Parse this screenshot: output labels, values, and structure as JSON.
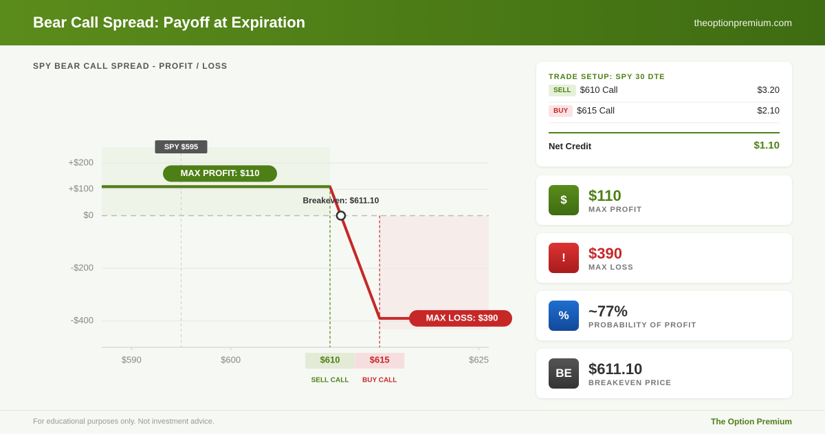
{
  "header": {
    "title": "Bear Call Spread: Payoff at Expiration",
    "site": "theoptionpremium.com"
  },
  "chart_data": {
    "type": "line",
    "title": "SPY BEAR CALL SPREAD - PROFIT / LOSS",
    "x": [
      587,
      610,
      615,
      626
    ],
    "values": [
      110,
      110,
      -390,
      -390
    ],
    "color": "#c62828",
    "profit_color": "#4e7f16",
    "xlim": [
      587,
      626
    ],
    "ylim": [
      -500,
      260
    ],
    "xticks": [
      {
        "value": 590,
        "label": "$590"
      },
      {
        "value": 600,
        "label": "$600"
      },
      {
        "value": 610,
        "label": "$610"
      },
      {
        "value": 615,
        "label": "$615"
      },
      {
        "value": 625,
        "label": "$625"
      }
    ],
    "yticks": [
      {
        "value": 200,
        "label": "+$200"
      },
      {
        "value": 100,
        "label": "+$100"
      },
      {
        "value": 0,
        "label": "$0"
      },
      {
        "value": -200,
        "label": "-$200"
      },
      {
        "value": -400,
        "label": "-$400"
      }
    ],
    "grid": true,
    "spot": {
      "x": 595,
      "label": "SPY $595"
    },
    "breakeven": {
      "x": 611.1,
      "y": 0,
      "label": "Breakeven: $611.10"
    },
    "max_profit_label": "MAX PROFIT: $110",
    "max_loss_label": "MAX LOSS: $390",
    "strikes": [
      {
        "x": 610,
        "caption": "SELL CALL",
        "color": "#4e7f16"
      },
      {
        "x": 615,
        "caption": "BUY CALL",
        "color": "#c62828"
      }
    ]
  },
  "trade_setup": {
    "title": "TRADE SETUP: SPY 30 DTE",
    "legs": [
      {
        "action": "SELL",
        "option": "$610 Call",
        "price": "$3.20"
      },
      {
        "action": "BUY",
        "option": "$615 Call",
        "price": "$2.10"
      }
    ],
    "net_label": "Net Credit",
    "net_value": "$1.10"
  },
  "stats": [
    {
      "icon": "$",
      "value": "$110",
      "label": "MAX PROFIT"
    },
    {
      "icon": "!",
      "value": "$390",
      "label": "MAX LOSS"
    },
    {
      "icon": "%",
      "value": "~77%",
      "label": "PROBABILITY OF PROFIT"
    },
    {
      "icon": "BE",
      "value": "$611.10",
      "label": "BREAKEVEN PRICE"
    }
  ],
  "footer": {
    "disclaimer": "For educational purposes only. Not investment advice.",
    "brand": "The Option Premium"
  }
}
